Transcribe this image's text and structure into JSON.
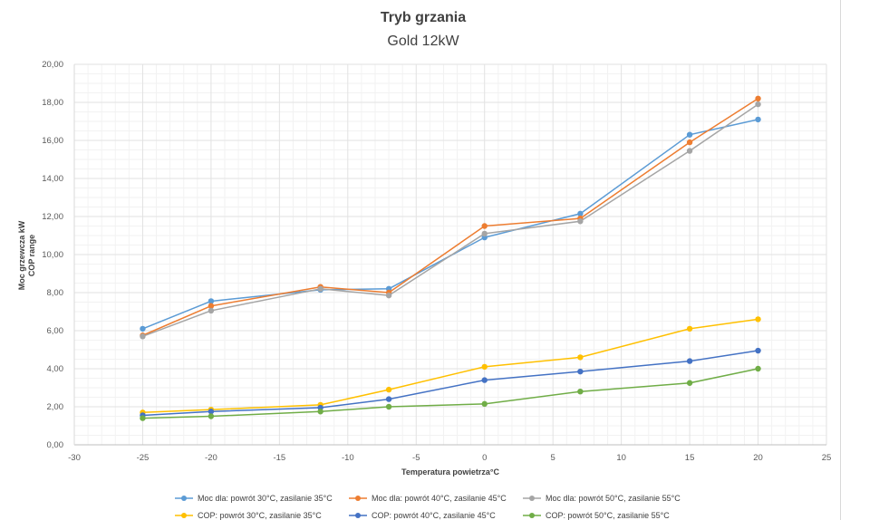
{
  "chart_data": {
    "type": "line",
    "title": "Tryb grzania",
    "subtitle": "Gold 12kW",
    "xlabel": "Temperatura powietrza°C",
    "ylabel_lines": [
      "Moc grzewcza  kW",
      "COP range"
    ],
    "xlim": [
      -30,
      25
    ],
    "ylim": [
      0,
      20
    ],
    "x_ticks": [
      -30,
      -25,
      -20,
      -15,
      -10,
      -5,
      0,
      5,
      10,
      15,
      20,
      25
    ],
    "x_tick_labels": [
      "-30",
      "-25",
      "-20",
      "-15",
      "-10",
      "-5",
      "0",
      "5",
      "10",
      "15",
      "20",
      "25"
    ],
    "y_ticks": [
      0,
      2,
      4,
      6,
      8,
      10,
      12,
      14,
      16,
      18,
      20
    ],
    "y_tick_labels": [
      "0,00",
      "2,00",
      "4,00",
      "6,00",
      "8,00",
      "10,00",
      "12,00",
      "14,00",
      "16,00",
      "18,00",
      "20,00"
    ],
    "grid": true,
    "legend_position": "bottom",
    "x": [
      -25,
      -20,
      -12,
      -7,
      0,
      7,
      15,
      20
    ],
    "series": [
      {
        "name": "Moc dla: powrót 30°C, zasilanie 35°C",
        "color": "#5b9bd5",
        "values": [
          6.1,
          7.55,
          8.15,
          8.2,
          10.9,
          12.15,
          16.3,
          17.1
        ]
      },
      {
        "name": "Moc dla: powrót 40°C, zasilanie 45°C",
        "color": "#ed7d31",
        "values": [
          5.75,
          7.3,
          8.3,
          8.0,
          11.5,
          11.9,
          15.9,
          18.2
        ]
      },
      {
        "name": "Moc dla: powrót 50°C, zasilanie 55°C",
        "color": "#a5a5a5",
        "values": [
          5.7,
          7.05,
          8.2,
          7.85,
          11.1,
          11.75,
          15.45,
          17.9
        ]
      },
      {
        "name": "COP: powrót 30°C, zasilanie 35°C",
        "color": "#ffc000",
        "values": [
          1.7,
          1.85,
          2.1,
          2.9,
          4.1,
          4.6,
          6.1,
          6.6
        ]
      },
      {
        "name": "COP: powrót 40°C, zasilanie 45°C",
        "color": "#4472c4",
        "values": [
          1.55,
          1.75,
          1.95,
          2.4,
          3.4,
          3.85,
          4.4,
          4.95
        ]
      },
      {
        "name": "COP: powrót 50°C, zasilanie 55°C",
        "color": "#70ad47",
        "values": [
          1.4,
          1.5,
          1.75,
          2.0,
          2.15,
          2.8,
          3.25,
          4.0
        ]
      }
    ]
  }
}
